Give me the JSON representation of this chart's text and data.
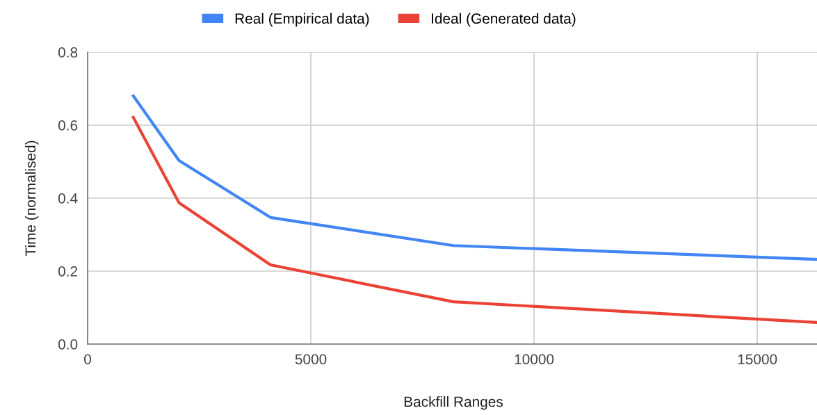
{
  "chart_data": {
    "type": "line",
    "xlabel": "Backfill Ranges",
    "ylabel": "Time (normalised)",
    "x": [
      1024,
      2048,
      4096,
      8192,
      16384
    ],
    "series": [
      {
        "name": "Real (Empirical data)",
        "color": "#4285f4",
        "values": [
          0.68,
          0.503,
          0.347,
          0.27,
          0.232
        ]
      },
      {
        "name": "Ideal (Generated data)",
        "color": "#ea4335",
        "values": [
          0.621,
          0.387,
          0.217,
          0.116,
          0.059
        ]
      }
    ],
    "xlim": [
      0,
      16384
    ],
    "ylim": [
      0,
      0.8
    ],
    "xticks": [
      0,
      5000,
      10000,
      15000
    ],
    "yticks": [
      {
        "value": 0,
        "label": "0.0"
      },
      0.2,
      0.4,
      0.6,
      0.8
    ],
    "grid": true,
    "legend": "top",
    "marker": "none",
    "line_style": "solid"
  }
}
